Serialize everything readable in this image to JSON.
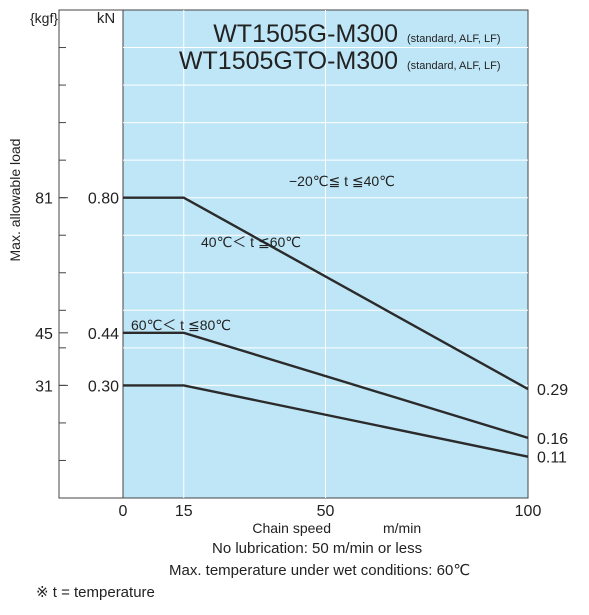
{
  "chart_data": {
    "type": "line",
    "titles": [
      {
        "model": "WT1505G-M300",
        "note": "(standard, ALF, LF)"
      },
      {
        "model": "WT1505GTO-M300",
        "note": "(standard, ALF, LF)"
      }
    ],
    "xlabel": "Chain speed",
    "xunit": "m/min",
    "xlim": [
      0,
      100
    ],
    "xticks": [
      0,
      15,
      50,
      100
    ],
    "ylabel": "Max. allowable load",
    "yunit_kn": "kN",
    "yunit_kgf": "{kgf}",
    "ylim": [
      0,
      1.3
    ],
    "grid": true,
    "kn_ticks": [
      "0.80",
      "0.44",
      "0.30"
    ],
    "kgf_ticks": [
      "81",
      "45",
      "31"
    ],
    "series": [
      {
        "name": "−20℃≦ t ≦40℃",
        "x": [
          0,
          15,
          100
        ],
        "y": [
          0.8,
          0.8,
          0.29
        ],
        "end_label": "0.29"
      },
      {
        "name": "40℃＜ t ≦60℃",
        "x": [
          0,
          15,
          100
        ],
        "y": [
          0.44,
          0.44,
          0.16
        ],
        "end_label": "0.16"
      },
      {
        "name": "60℃＜ t ≦80℃",
        "x": [
          0,
          15,
          100
        ],
        "y": [
          0.3,
          0.3,
          0.11
        ],
        "end_label": "0.11"
      }
    ],
    "colors": {
      "plot_bg": "#bfe6f7",
      "grid": "#ffffff",
      "line": "#2b2b2b"
    }
  },
  "notes": {
    "lubrication": "No lubrication: 50 m/min or less",
    "wet": "Max. temperature under wet conditions: 60℃",
    "symbol": "※ t = temperature"
  }
}
